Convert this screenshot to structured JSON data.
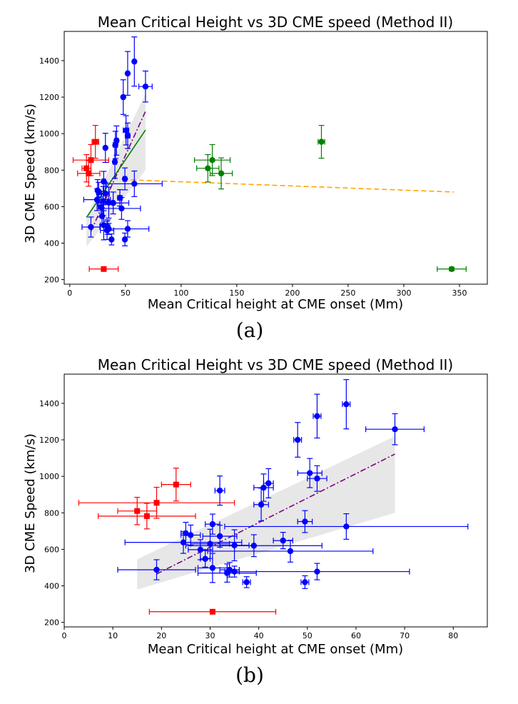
{
  "chart_data": [
    {
      "type": "scatter",
      "panel_caption": "(a)",
      "title": "Mean Critical Height vs 3D CME speed (Method II)",
      "xlabel": "Mean Critical height at CME onset (Mm)",
      "ylabel": "3D CME Speed (km/s)",
      "xlim": [
        -5,
        375
      ],
      "ylim": [
        175,
        1560
      ],
      "xticks": [
        0,
        50,
        100,
        150,
        200,
        250,
        300,
        350
      ],
      "yticks": [
        200,
        400,
        600,
        800,
        1000,
        1200,
        1400
      ],
      "grid": false,
      "series": [
        {
          "name": "blue CMEs",
          "color": "#0000ff",
          "marker": "circle",
          "points": [
            {
              "x": 58,
              "y": 1395,
              "xerr": 1,
              "yerr": 135
            },
            {
              "x": 52,
              "y": 1330,
              "xerr": 1,
              "yerr": 120
            },
            {
              "x": 68,
              "y": 1258,
              "xerr": 6,
              "yerr": 85
            },
            {
              "x": 48,
              "y": 1200,
              "xerr": 1,
              "yerr": 95
            },
            {
              "x": 50.5,
              "y": 1018,
              "xerr": 2.5,
              "yerr": 80
            },
            {
              "x": 52,
              "y": 988,
              "xerr": 2,
              "yerr": 70
            },
            {
              "x": 42,
              "y": 962,
              "xerr": 1.5,
              "yerr": 80
            },
            {
              "x": 41,
              "y": 938,
              "xerr": 2,
              "yerr": 75
            },
            {
              "x": 32,
              "y": 922,
              "xerr": 1,
              "yerr": 80
            },
            {
              "x": 40.5,
              "y": 845,
              "xerr": 1.5,
              "yerr": 90
            },
            {
              "x": 49.5,
              "y": 752,
              "xerr": 1.5,
              "yerr": 60
            },
            {
              "x": 30.5,
              "y": 738,
              "xerr": 1.5,
              "yerr": 55
            },
            {
              "x": 58,
              "y": 725,
              "xerr": 25,
              "yerr": 70
            },
            {
              "x": 25,
              "y": 688,
              "xerr": 1,
              "yerr": 60
            },
            {
              "x": 26,
              "y": 678,
              "xerr": 2,
              "yerr": 55
            },
            {
              "x": 32,
              "y": 672,
              "xerr": 3.5,
              "yerr": 60
            },
            {
              "x": 45,
              "y": 648,
              "xerr": 2,
              "yerr": 45
            },
            {
              "x": 24.5,
              "y": 638,
              "xerr": 12,
              "yerr": 60
            },
            {
              "x": 30,
              "y": 630,
              "xerr": 4,
              "yerr": 80
            },
            {
              "x": 35,
              "y": 622,
              "xerr": 3,
              "yerr": 85
            },
            {
              "x": 39,
              "y": 620,
              "xerr": 14,
              "yerr": 60
            },
            {
              "x": 28,
              "y": 598,
              "xerr": 2.5,
              "yerr": 55
            },
            {
              "x": 46.5,
              "y": 590,
              "xerr": 17,
              "yerr": 60
            },
            {
              "x": 29,
              "y": 548,
              "xerr": 1,
              "yerr": 45
            },
            {
              "x": 19,
              "y": 488,
              "xerr": 8,
              "yerr": 55
            },
            {
              "x": 30.5,
              "y": 498,
              "xerr": 3,
              "yerr": 80
            },
            {
              "x": 34,
              "y": 488,
              "xerr": 2,
              "yerr": 40
            },
            {
              "x": 35,
              "y": 478,
              "xerr": 1,
              "yerr": 30
            },
            {
              "x": 52,
              "y": 478,
              "xerr": 19,
              "yerr": 45
            },
            {
              "x": 33.5,
              "y": 470,
              "xerr": 6,
              "yerr": 50
            },
            {
              "x": 37.5,
              "y": 420,
              "xerr": 1,
              "yerr": 30
            },
            {
              "x": 49.5,
              "y": 420,
              "xerr": 1,
              "yerr": 35
            }
          ]
        },
        {
          "name": "red CMEs",
          "color": "#ff0000",
          "marker": "square",
          "points": [
            {
              "x": 23,
              "y": 955,
              "xerr": 3,
              "yerr": 90
            },
            {
              "x": 19,
              "y": 855,
              "xerr": 16,
              "yerr": 85
            },
            {
              "x": 15,
              "y": 810,
              "xerr": 4,
              "yerr": 75
            },
            {
              "x": 17,
              "y": 782,
              "xerr": 10,
              "yerr": 70
            },
            {
              "x": 30.5,
              "y": 258,
              "xerr": 13,
              "yerr": 10
            }
          ]
        },
        {
          "name": "green CMEs",
          "color": "#008000",
          "marker": "circle",
          "points": [
            {
              "x": 226,
              "y": 955,
              "xerr": 3,
              "yerr": 90
            },
            {
              "x": 128,
              "y": 855,
              "xerr": 16,
              "yerr": 85
            },
            {
              "x": 124,
              "y": 810,
              "xerr": 10,
              "yerr": 75
            },
            {
              "x": 136,
              "y": 782,
              "xerr": 10,
              "yerr": 85
            },
            {
              "x": 343,
              "y": 258,
              "xerr": 13,
              "yerr": 10
            }
          ]
        }
      ],
      "band": {
        "x": [
          15,
          68
        ],
        "lower": [
          380,
          800
        ],
        "upper": [
          545,
          1220
        ],
        "color": "#bbbbbb"
      },
      "fits": [
        {
          "name": "blue fit",
          "color": "#800080",
          "style": "dashdot",
          "x": [
            19,
            68
          ],
          "y": [
            465,
            1122
          ]
        },
        {
          "name": "blue+red fit",
          "color": "#008000",
          "style": "solid",
          "x": [
            15,
            68
          ],
          "y": [
            540,
            1020
          ]
        },
        {
          "name": "green fit",
          "color": "#ffa500",
          "style": "dashed",
          "x": [
            48,
            345
          ],
          "y": [
            748,
            680
          ]
        }
      ]
    },
    {
      "type": "scatter",
      "panel_caption": "(b)",
      "title": "Mean Critical Height vs 3D CME speed (Method II)",
      "xlabel": "Mean Critical height at CME onset (Mm)",
      "ylabel": "3D CME Speed (km/s)",
      "xlim": [
        0,
        87
      ],
      "ylim": [
        175,
        1560
      ],
      "xticks": [
        0,
        10,
        20,
        30,
        40,
        50,
        60,
        70,
        80
      ],
      "yticks": [
        200,
        400,
        600,
        800,
        1000,
        1200,
        1400
      ],
      "grid": false,
      "series": [
        {
          "name": "blue CMEs",
          "color": "#0000ff",
          "marker": "circle",
          "points": [
            {
              "x": 58,
              "y": 1395,
              "xerr": 0.8,
              "yerr": 135
            },
            {
              "x": 52,
              "y": 1330,
              "xerr": 0.8,
              "yerr": 120
            },
            {
              "x": 68,
              "y": 1258,
              "xerr": 6,
              "yerr": 85
            },
            {
              "x": 48,
              "y": 1200,
              "xerr": 0.8,
              "yerr": 95
            },
            {
              "x": 50.5,
              "y": 1018,
              "xerr": 2.5,
              "yerr": 80
            },
            {
              "x": 52,
              "y": 988,
              "xerr": 2,
              "yerr": 70
            },
            {
              "x": 42,
              "y": 962,
              "xerr": 1,
              "yerr": 80
            },
            {
              "x": 41,
              "y": 938,
              "xerr": 2,
              "yerr": 75
            },
            {
              "x": 32,
              "y": 922,
              "xerr": 1,
              "yerr": 80
            },
            {
              "x": 40.5,
              "y": 845,
              "xerr": 1.5,
              "yerr": 90
            },
            {
              "x": 49.5,
              "y": 752,
              "xerr": 1.5,
              "yerr": 60
            },
            {
              "x": 30.5,
              "y": 738,
              "xerr": 1.5,
              "yerr": 55
            },
            {
              "x": 58,
              "y": 725,
              "xerr": 25,
              "yerr": 70
            },
            {
              "x": 25,
              "y": 688,
              "xerr": 1,
              "yerr": 60
            },
            {
              "x": 26,
              "y": 678,
              "xerr": 2,
              "yerr": 55
            },
            {
              "x": 32,
              "y": 672,
              "xerr": 3.5,
              "yerr": 60
            },
            {
              "x": 45,
              "y": 648,
              "xerr": 2,
              "yerr": 45
            },
            {
              "x": 24.5,
              "y": 638,
              "xerr": 12,
              "yerr": 60
            },
            {
              "x": 30,
              "y": 630,
              "xerr": 4,
              "yerr": 80
            },
            {
              "x": 35,
              "y": 622,
              "xerr": 3,
              "yerr": 85
            },
            {
              "x": 39,
              "y": 620,
              "xerr": 14,
              "yerr": 60
            },
            {
              "x": 28,
              "y": 598,
              "xerr": 2.5,
              "yerr": 55
            },
            {
              "x": 46.5,
              "y": 590,
              "xerr": 17,
              "yerr": 60
            },
            {
              "x": 29,
              "y": 548,
              "xerr": 1,
              "yerr": 45
            },
            {
              "x": 19,
              "y": 488,
              "xerr": 8,
              "yerr": 55
            },
            {
              "x": 30.5,
              "y": 498,
              "xerr": 3,
              "yerr": 80
            },
            {
              "x": 34,
              "y": 488,
              "xerr": 2,
              "yerr": 40
            },
            {
              "x": 35,
              "y": 478,
              "xerr": 1,
              "yerr": 30
            },
            {
              "x": 52,
              "y": 478,
              "xerr": 19,
              "yerr": 45
            },
            {
              "x": 33.5,
              "y": 470,
              "xerr": 6,
              "yerr": 50
            },
            {
              "x": 37.5,
              "y": 420,
              "xerr": 0.8,
              "yerr": 30
            },
            {
              "x": 49.5,
              "y": 420,
              "xerr": 0.8,
              "yerr": 35
            }
          ]
        },
        {
          "name": "red CMEs",
          "color": "#ff0000",
          "marker": "square",
          "points": [
            {
              "x": 23,
              "y": 955,
              "xerr": 3,
              "yerr": 90
            },
            {
              "x": 19,
              "y": 855,
              "xerr": 16,
              "yerr": 85
            },
            {
              "x": 15,
              "y": 810,
              "xerr": 4,
              "yerr": 75
            },
            {
              "x": 17,
              "y": 782,
              "xerr": 10,
              "yerr": 70
            },
            {
              "x": 30.5,
              "y": 258,
              "xerr": 13,
              "yerr": 10
            }
          ]
        }
      ],
      "band": {
        "x": [
          15,
          68
        ],
        "lower": [
          380,
          800
        ],
        "upper": [
          545,
          1220
        ],
        "color": "#bbbbbb"
      },
      "fits": [
        {
          "name": "blue fit",
          "color": "#800080",
          "style": "dashdot",
          "x": [
            19,
            68
          ],
          "y": [
            465,
            1122
          ]
        }
      ]
    }
  ]
}
